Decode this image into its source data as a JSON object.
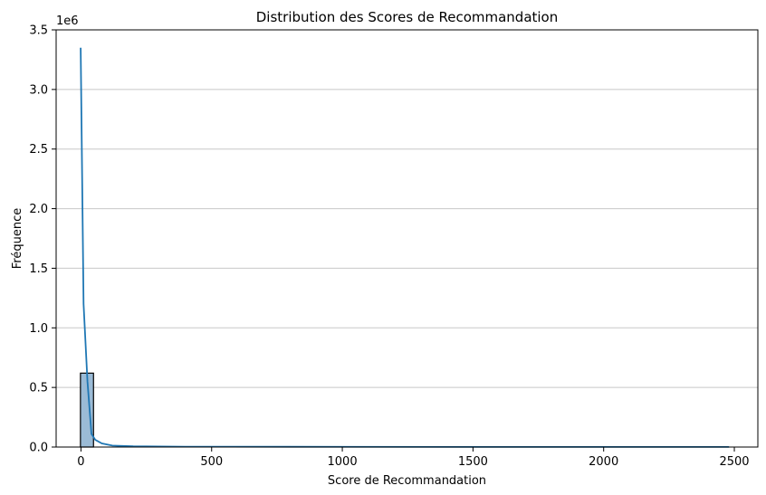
{
  "chart_data": {
    "type": "bar",
    "title": "Distribution des Scores de Recommandation",
    "xlabel": "Score de Recommandation",
    "ylabel": "Fréquence",
    "y_offset_label": "1e6",
    "xlim": [
      -95,
      2590
    ],
    "ylim": [
      0,
      3.5
    ],
    "y_unit_multiplier": 1000000,
    "x_ticks": [
      0,
      500,
      1000,
      1500,
      2000,
      2500
    ],
    "y_ticks": [
      0.0,
      0.5,
      1.0,
      1.5,
      2.0,
      2.5,
      3.0,
      3.5
    ],
    "grid": "y",
    "bins": [
      {
        "x0": -2,
        "x1": 48,
        "value": 0.62
      }
    ],
    "kde": {
      "x": [
        -1,
        10,
        25,
        40,
        55,
        80,
        120,
        200,
        400,
        800,
        1500,
        2480
      ],
      "y": [
        3.35,
        1.2,
        0.55,
        0.11,
        0.06,
        0.03,
        0.012,
        0.006,
        0.003,
        0.002,
        0.001,
        0.0005
      ]
    },
    "colors": {
      "bar_fill": "#9bbbd6",
      "bar_edge": "#000000",
      "kde_line": "#1f77b4",
      "grid": "#c8c8c8"
    }
  }
}
